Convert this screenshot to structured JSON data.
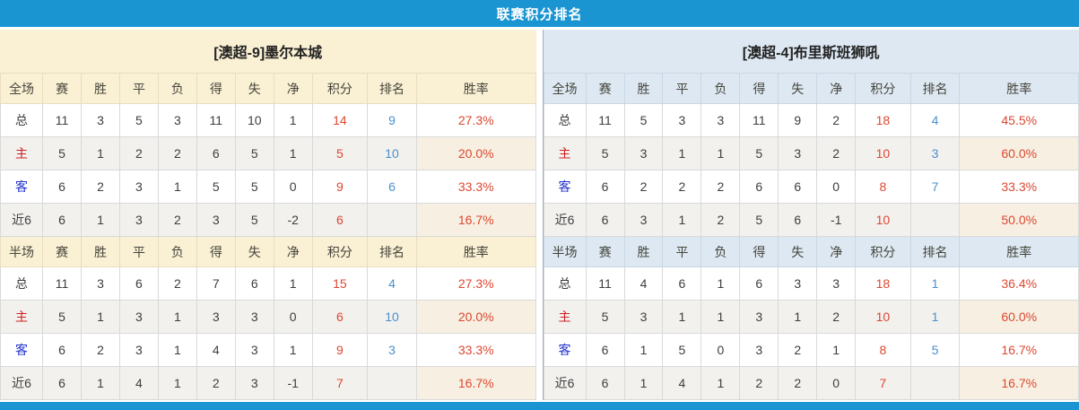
{
  "title": "联赛积分排名",
  "columns_full": [
    "全场",
    "赛",
    "胜",
    "平",
    "负",
    "得",
    "失",
    "净",
    "积分",
    "排名",
    "胜率"
  ],
  "columns_half": [
    "半场",
    "赛",
    "胜",
    "平",
    "负",
    "得",
    "失",
    "净",
    "积分",
    "排名",
    "胜率"
  ],
  "colors": {
    "header_bar_blue": "#1b95d2",
    "left_header_bg": "#faf0d3",
    "right_header_bg": "#dde8f2",
    "value_red": "#dd4731",
    "rank_blue": "#4a8fce",
    "home_label_red": "#cc2222",
    "away_label_blue": "#2333cc"
  },
  "teams": [
    {
      "name": "[澳超-9]墨尔本城",
      "full": [
        {
          "type": "total",
          "label": "总",
          "values": [
            "11",
            "3",
            "5",
            "3",
            "11",
            "10",
            "1"
          ],
          "points": "14",
          "rank": "9",
          "rate": "27.3%"
        },
        {
          "type": "home",
          "label": "主",
          "values": [
            "5",
            "1",
            "2",
            "2",
            "6",
            "5",
            "1"
          ],
          "points": "5",
          "rank": "10",
          "rate": "20.0%"
        },
        {
          "type": "away",
          "label": "客",
          "values": [
            "6",
            "2",
            "3",
            "1",
            "5",
            "5",
            "0"
          ],
          "points": "9",
          "rank": "6",
          "rate": "33.3%"
        },
        {
          "type": "recent",
          "label": "近6",
          "values": [
            "6",
            "1",
            "3",
            "2",
            "3",
            "5",
            "-2"
          ],
          "points": "6",
          "rank": "",
          "rate": "16.7%"
        }
      ],
      "half": [
        {
          "type": "total",
          "label": "总",
          "values": [
            "11",
            "3",
            "6",
            "2",
            "7",
            "6",
            "1"
          ],
          "points": "15",
          "rank": "4",
          "rate": "27.3%"
        },
        {
          "type": "home",
          "label": "主",
          "values": [
            "5",
            "1",
            "3",
            "1",
            "3",
            "3",
            "0"
          ],
          "points": "6",
          "rank": "10",
          "rate": "20.0%"
        },
        {
          "type": "away",
          "label": "客",
          "values": [
            "6",
            "2",
            "3",
            "1",
            "4",
            "3",
            "1"
          ],
          "points": "9",
          "rank": "3",
          "rate": "33.3%"
        },
        {
          "type": "recent",
          "label": "近6",
          "values": [
            "6",
            "1",
            "4",
            "1",
            "2",
            "3",
            "-1"
          ],
          "points": "7",
          "rank": "",
          "rate": "16.7%"
        }
      ]
    },
    {
      "name": "[澳超-4]布里斯班狮吼",
      "full": [
        {
          "type": "total",
          "label": "总",
          "values": [
            "11",
            "5",
            "3",
            "3",
            "11",
            "9",
            "2"
          ],
          "points": "18",
          "rank": "4",
          "rate": "45.5%"
        },
        {
          "type": "home",
          "label": "主",
          "values": [
            "5",
            "3",
            "1",
            "1",
            "5",
            "3",
            "2"
          ],
          "points": "10",
          "rank": "3",
          "rate": "60.0%"
        },
        {
          "type": "away",
          "label": "客",
          "values": [
            "6",
            "2",
            "2",
            "2",
            "6",
            "6",
            "0"
          ],
          "points": "8",
          "rank": "7",
          "rate": "33.3%"
        },
        {
          "type": "recent",
          "label": "近6",
          "values": [
            "6",
            "3",
            "1",
            "2",
            "5",
            "6",
            "-1"
          ],
          "points": "10",
          "rank": "",
          "rate": "50.0%"
        }
      ],
      "half": [
        {
          "type": "total",
          "label": "总",
          "values": [
            "11",
            "4",
            "6",
            "1",
            "6",
            "3",
            "3"
          ],
          "points": "18",
          "rank": "1",
          "rate": "36.4%"
        },
        {
          "type": "home",
          "label": "主",
          "values": [
            "5",
            "3",
            "1",
            "1",
            "3",
            "1",
            "2"
          ],
          "points": "10",
          "rank": "1",
          "rate": "60.0%"
        },
        {
          "type": "away",
          "label": "客",
          "values": [
            "6",
            "1",
            "5",
            "0",
            "3",
            "2",
            "1"
          ],
          "points": "8",
          "rank": "5",
          "rate": "16.7%"
        },
        {
          "type": "recent",
          "label": "近6",
          "values": [
            "6",
            "1",
            "4",
            "1",
            "2",
            "2",
            "0"
          ],
          "points": "7",
          "rank": "",
          "rate": "16.7%"
        }
      ]
    }
  ]
}
